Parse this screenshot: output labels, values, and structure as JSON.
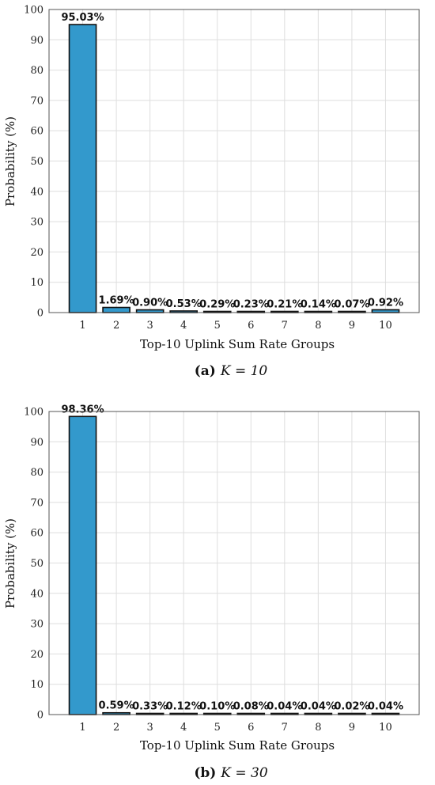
{
  "colors": {
    "bar": "#3399cc",
    "edge": "#111111",
    "grid": "#dedede"
  },
  "chart_data": [
    {
      "type": "bar",
      "caption": {
        "tag": "(a)",
        "text": "K = 10"
      },
      "categories": [
        "1",
        "2",
        "3",
        "4",
        "5",
        "6",
        "7",
        "8",
        "9",
        "10"
      ],
      "values": [
        95.03,
        1.69,
        0.9,
        0.53,
        0.29,
        0.23,
        0.21,
        0.14,
        0.07,
        0.92
      ],
      "labels": [
        "95.03%",
        "1.69%",
        "0.90%",
        "0.53%",
        "0.29%",
        "0.23%",
        "0.21%",
        "0.14%",
        "0.07%",
        "0.92%"
      ],
      "xlabel": "Top-10 Uplink Sum Rate Groups",
      "ylabel": "Probability (%)",
      "ylim": [
        0,
        100
      ],
      "yticks": [
        0,
        10,
        20,
        30,
        40,
        50,
        60,
        70,
        80,
        90,
        100
      ],
      "grid": true
    },
    {
      "type": "bar",
      "caption": {
        "tag": "(b)",
        "text": "K = 30"
      },
      "categories": [
        "1",
        "2",
        "3",
        "4",
        "5",
        "6",
        "7",
        "8",
        "9",
        "10"
      ],
      "values": [
        98.36,
        0.59,
        0.33,
        0.12,
        0.1,
        0.08,
        0.04,
        0.04,
        0.02,
        0.04
      ],
      "labels": [
        "98.36%",
        "0.59%",
        "0.33%",
        "0.12%",
        "0.10%",
        "0.08%",
        "0.04%",
        "0.04%",
        "0.02%",
        "0.04%"
      ],
      "xlabel": "Top-10 Uplink Sum Rate Groups",
      "ylabel": "Probability (%)",
      "ylim": [
        0,
        100
      ],
      "yticks": [
        0,
        10,
        20,
        30,
        40,
        50,
        60,
        70,
        80,
        90,
        100
      ],
      "grid": true
    }
  ]
}
